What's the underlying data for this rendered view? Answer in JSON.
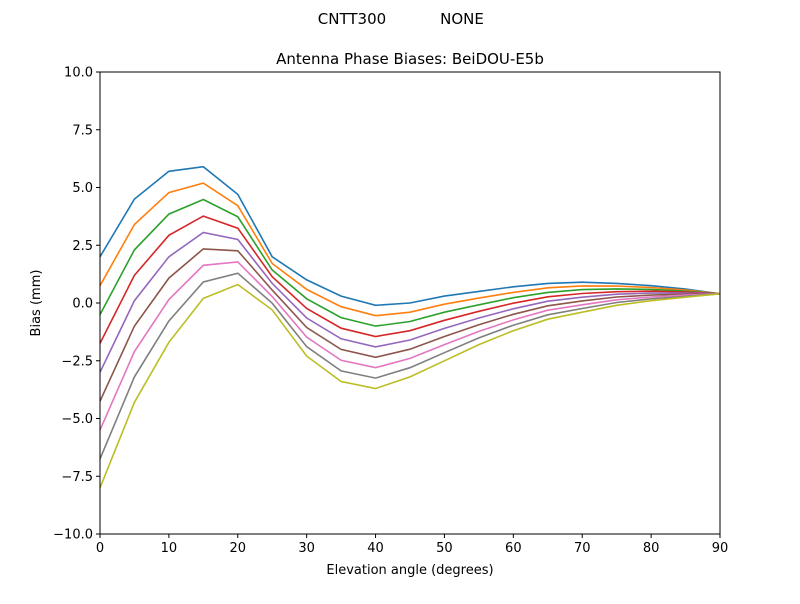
{
  "chart_data": {
    "type": "line",
    "suptitle_left": "CNTT300",
    "suptitle_right": "NONE",
    "title": "Antenna Phase Biases: BeiDOU-E5b",
    "xlabel": "Elevation angle (degrees)",
    "ylabel": "Bias (mm)",
    "xlim": [
      0,
      90
    ],
    "ylim": [
      -10,
      10
    ],
    "xticks": [
      0,
      10,
      20,
      30,
      40,
      50,
      60,
      70,
      80,
      90
    ],
    "yticks": [
      -10.0,
      -7.5,
      -5.0,
      -2.5,
      0.0,
      2.5,
      5.0,
      7.5,
      10.0
    ],
    "ytick_labels": [
      "−10.0",
      "−7.5",
      "−5.0",
      "−2.5",
      "0.0",
      "2.5",
      "5.0",
      "7.5",
      "10.0"
    ],
    "grid": false,
    "colors": [
      "#1f77b4",
      "#ff7f0e",
      "#2ca02c",
      "#d62728",
      "#9467bd",
      "#8c564b",
      "#e377c2",
      "#7f7f7f",
      "#bcbd22",
      "#17becf"
    ],
    "x": [
      0,
      5,
      10,
      15,
      20,
      25,
      30,
      35,
      40,
      45,
      50,
      55,
      60,
      65,
      70,
      75,
      80,
      85,
      90
    ],
    "series": [
      {
        "values": [
          2.0,
          4.5,
          5.7,
          5.9,
          4.7,
          2.0,
          1.0,
          0.3,
          -0.1,
          0.0,
          0.3,
          0.5,
          0.7,
          0.85,
          0.9,
          0.85,
          0.75,
          0.6,
          0.4
        ]
      },
      {
        "values": [
          0.75,
          3.4,
          4.78,
          5.19,
          4.21,
          1.71,
          0.59,
          -0.16,
          -0.55,
          -0.4,
          -0.05,
          0.21,
          0.46,
          0.66,
          0.74,
          0.73,
          0.67,
          0.56,
          0.4
        ]
      },
      {
        "values": [
          -0.5,
          2.3,
          3.85,
          4.48,
          3.73,
          1.43,
          0.18,
          -0.63,
          -1.0,
          -0.8,
          -0.4,
          -0.08,
          0.23,
          0.46,
          0.58,
          0.61,
          0.59,
          0.51,
          0.4
        ]
      },
      {
        "values": [
          -1.75,
          1.2,
          2.93,
          3.76,
          3.24,
          1.14,
          -0.24,
          -1.09,
          -1.45,
          -1.2,
          -0.75,
          -0.36,
          -0.01,
          0.27,
          0.41,
          0.49,
          0.51,
          0.47,
          0.4
        ]
      },
      {
        "values": [
          -3.0,
          0.1,
          2.0,
          3.05,
          2.75,
          0.85,
          -0.65,
          -1.55,
          -1.9,
          -1.6,
          -1.1,
          -0.65,
          -0.25,
          0.08,
          0.25,
          0.38,
          0.43,
          0.43,
          0.4
        ]
      },
      {
        "values": [
          -4.25,
          -1.0,
          1.08,
          2.34,
          2.26,
          0.56,
          -1.06,
          -2.01,
          -2.35,
          -2.0,
          -1.45,
          -0.94,
          -0.49,
          -0.12,
          0.09,
          0.26,
          0.34,
          0.38,
          0.4
        ]
      },
      {
        "values": [
          -5.5,
          -2.1,
          0.15,
          1.63,
          1.78,
          0.28,
          -1.48,
          -2.48,
          -2.8,
          -2.4,
          -1.8,
          -1.23,
          -0.73,
          -0.31,
          -0.08,
          0.14,
          0.26,
          0.34,
          0.4
        ]
      },
      {
        "values": [
          -6.75,
          -3.2,
          -0.78,
          0.91,
          1.29,
          -0.01,
          -1.89,
          -2.94,
          -3.25,
          -2.8,
          -2.15,
          -1.51,
          -0.96,
          -0.51,
          -0.24,
          0.02,
          0.18,
          0.29,
          0.4
        ]
      },
      {
        "values": [
          -8.0,
          -4.3,
          -1.7,
          0.2,
          0.8,
          -0.3,
          -2.3,
          -3.4,
          -3.7,
          -3.2,
          -2.5,
          -1.8,
          -1.2,
          -0.7,
          -0.4,
          -0.1,
          0.1,
          0.25,
          0.4
        ]
      }
    ]
  }
}
